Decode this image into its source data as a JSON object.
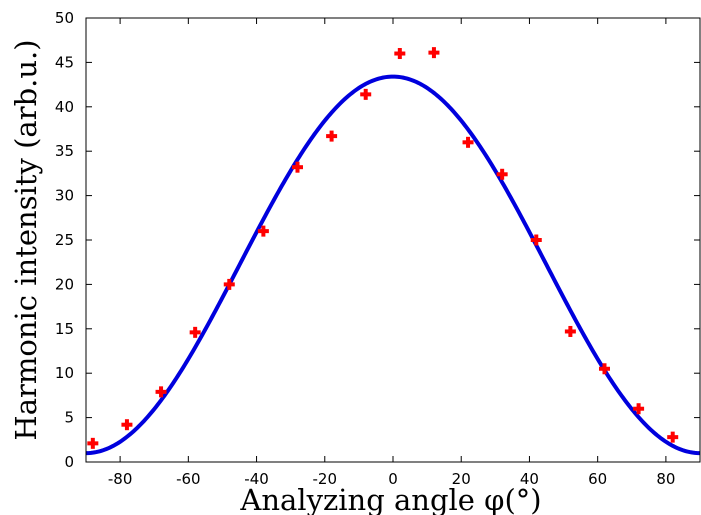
{
  "chart_data": {
    "type": "scatter",
    "xlabel": "Analyzing angle φ(°)",
    "ylabel": "Harmonic intensity (arb.u.)",
    "xlim": [
      -90,
      90
    ],
    "ylim": [
      0,
      50
    ],
    "x_ticks": [
      -80,
      -60,
      -40,
      -20,
      0,
      20,
      40,
      60,
      80
    ],
    "y_ticks": [
      0,
      5,
      10,
      15,
      20,
      25,
      30,
      35,
      40,
      45,
      50
    ],
    "grid": false,
    "series": [
      {
        "kind": "points",
        "marker": "plus",
        "color": "#ff0000",
        "x": [
          -88,
          -78,
          -68,
          -58,
          -48,
          -38,
          -28,
          -18,
          -8,
          2,
          12,
          22,
          32,
          42,
          52,
          62,
          72,
          82
        ],
        "y": [
          2.1,
          4.2,
          7.9,
          14.6,
          20.0,
          26.0,
          33.2,
          36.7,
          41.4,
          46.0,
          46.1,
          36.0,
          32.4,
          25.0,
          14.7,
          10.5,
          6.0,
          2.8
        ]
      },
      {
        "kind": "fit-curve",
        "color": "#0000dd",
        "function": "y = 42.4*cos(x)^2 + 1",
        "x_range": [
          -90,
          90
        ]
      }
    ]
  }
}
